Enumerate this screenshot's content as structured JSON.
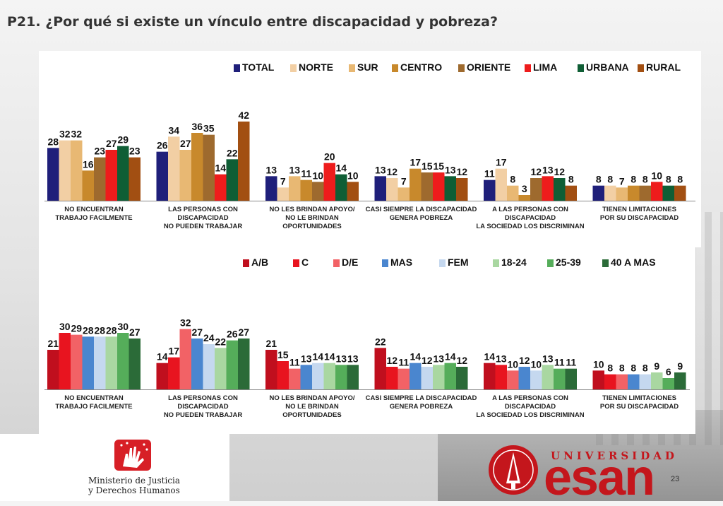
{
  "title": "P21. ¿Por qué si existe un vínculo entre discapacidad y pobreza?",
  "page_number": "23",
  "logos": {
    "ministry_line1": "Ministerio de Justicia",
    "ministry_line2": "y Derechos Humanos",
    "university_word": "UNIVERSIDAD",
    "esan_word": "esan"
  },
  "chart_data": [
    {
      "type": "bar",
      "categories": [
        [
          "NO ENCUENTRAN",
          "TRABAJO FACILMENTE"
        ],
        [
          "LAS PERSONAS CON",
          "DISCAPACIDAD",
          "NO PUEDEN TRABAJAR"
        ],
        [
          "NO LES BRINDAN APOYO/",
          "NO LE BRINDAN",
          "OPORTUNIDADES"
        ],
        [
          "CASI SIEMPRE LA DISCAPACIDAD",
          "GENERA POBREZA"
        ],
        [
          "A LAS PERSONAS CON",
          "DISCAPACIDAD",
          "LA SOCIEDAD LOS DISCRIMINAN"
        ],
        [
          "TIENEN LIMITACIONES",
          "POR SU DISCAPACIDAD"
        ]
      ],
      "series": [
        {
          "name": "TOTAL",
          "color": "#1f1f7a",
          "values": [
            28,
            26,
            13,
            13,
            11,
            8
          ]
        },
        {
          "name": "NORTE",
          "color": "#f2cfa4",
          "values": [
            32,
            34,
            7,
            12,
            17,
            8
          ]
        },
        {
          "name": "SUR",
          "color": "#e8b873",
          "values": [
            32,
            27,
            13,
            7,
            8,
            7
          ]
        },
        {
          "name": "CENTRO",
          "color": "#c8892c",
          "values": [
            16,
            36,
            11,
            17,
            3,
            8
          ]
        },
        {
          "name": "ORIENTE",
          "color": "#9e6a2e",
          "values": [
            23,
            35,
            10,
            15,
            12,
            8
          ]
        },
        {
          "name": "LIMA",
          "color": "#ee1c1c",
          "values": [
            27,
            14,
            20,
            15,
            13,
            10
          ]
        },
        {
          "name": "URBANA",
          "color": "#0f5e35",
          "values": [
            29,
            22,
            14,
            13,
            12,
            8
          ]
        },
        {
          "name": "RURAL",
          "color": "#a24f12",
          "values": [
            23,
            42,
            10,
            12,
            8,
            8
          ]
        }
      ],
      "ylim": [
        0,
        45
      ],
      "legend": "top-right",
      "grid": false
    },
    {
      "type": "bar",
      "categories": [
        [
          "NO ENCUENTRAN",
          "TRABAJO FACILMENTE"
        ],
        [
          "LAS PERSONAS CON",
          "DISCAPACIDAD",
          "NO PUEDEN TRABAJAR"
        ],
        [
          "NO LES BRINDAN APOYO/",
          "NO LE BRINDAN",
          "OPORTUNIDADES"
        ],
        [
          "CASI SIEMPRE LA DISCAPACIDAD",
          "GENERA POBREZA"
        ],
        [
          "A LAS PERSONAS CON",
          "DISCAPACIDAD",
          "LA SOCIEDAD LOS DISCRIMINAN"
        ],
        [
          "TIENEN LIMITACIONES",
          "POR SU DISCAPACIDAD"
        ]
      ],
      "series": [
        {
          "name": "A/B",
          "color": "#c00f1e",
          "values": [
            21,
            14,
            21,
            22,
            14,
            10
          ]
        },
        {
          "name": "C",
          "color": "#e8141f",
          "values": [
            30,
            17,
            15,
            12,
            13,
            8
          ]
        },
        {
          "name": "D/E",
          "color": "#f26266",
          "values": [
            29,
            32,
            11,
            11,
            10,
            8
          ]
        },
        {
          "name": "MAS",
          "color": "#4a86cf",
          "values": [
            28,
            27,
            13,
            14,
            12,
            8
          ]
        },
        {
          "name": "FEM",
          "color": "#c5d8ef",
          "values": [
            28,
            24,
            14,
            12,
            10,
            8
          ]
        },
        {
          "name": "18-24",
          "color": "#a9d7a1",
          "values": [
            28,
            22,
            14,
            13,
            13,
            9
          ]
        },
        {
          "name": "25-39",
          "color": "#55ad5a",
          "values": [
            30,
            26,
            13,
            14,
            11,
            6
          ]
        },
        {
          "name": "40 A MAS",
          "color": "#2b6b38",
          "values": [
            27,
            27,
            13,
            12,
            11,
            9
          ]
        }
      ],
      "ylim": [
        0,
        45
      ],
      "legend": "top-right",
      "grid": false
    }
  ]
}
